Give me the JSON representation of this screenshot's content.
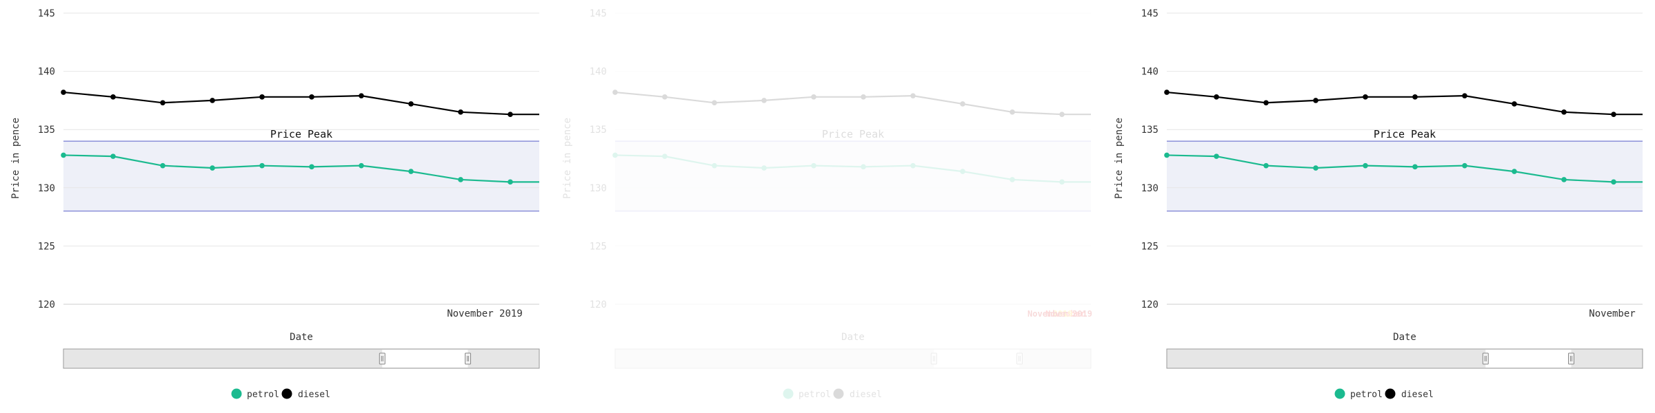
{
  "chart_data": [
    {
      "type": "line",
      "ylabel": "Price in pence",
      "xlabel": "Date",
      "x_tick_labels": [
        "November 2019"
      ],
      "ylim": [
        120,
        145
      ],
      "y_ticks": [
        120,
        125,
        130,
        135,
        140,
        145
      ],
      "grid": true,
      "plot_band": {
        "label": "Price Peak",
        "from": 128,
        "to": 134
      },
      "series": [
        {
          "name": "petrol",
          "color": "#1bba8f",
          "values": [
            132.8,
            132.7,
            131.9,
            131.7,
            131.9,
            131.8,
            131.9,
            131.4,
            130.7,
            130.5,
            130.5
          ]
        },
        {
          "name": "diesel",
          "color": "#000000",
          "values": [
            138.2,
            137.8,
            137.3,
            137.5,
            137.8,
            137.8,
            137.9,
            137.2,
            136.5,
            136.3,
            136.3
          ]
        }
      ],
      "navigator": {
        "handle_start": 0.67,
        "handle_end": 0.85
      },
      "legend": {
        "position": "bottom-center"
      }
    },
    {
      "type": "line",
      "faded": true,
      "ylabel": "Price in pence",
      "xlabel": "Date",
      "x_tick_labels": [
        "November",
        "2019",
        "November 2019"
      ],
      "ylim": [
        120,
        145
      ],
      "y_ticks": [
        120,
        125,
        130,
        135,
        140,
        145
      ],
      "grid": true,
      "plot_band": {
        "label": "Price Peak",
        "from": 128,
        "to": 134
      },
      "series": [
        {
          "name": "petrol",
          "color": "#1bba8f",
          "values": [
            132.8,
            132.7,
            131.9,
            131.7,
            131.9,
            131.8,
            131.9,
            131.4,
            130.7,
            130.5,
            130.5
          ]
        },
        {
          "name": "diesel",
          "color": "#000000",
          "values": [
            138.2,
            137.8,
            137.3,
            137.5,
            137.8,
            137.8,
            137.9,
            137.2,
            136.5,
            136.3,
            136.3
          ]
        }
      ],
      "navigator": {
        "handle_start": 0.67,
        "handle_end": 0.85
      },
      "legend": {
        "position": "bottom-center"
      }
    },
    {
      "type": "line",
      "ylabel": "Price in pence",
      "xlabel": "Date",
      "x_tick_labels": [
        "November"
      ],
      "ylim": [
        120,
        145
      ],
      "y_ticks": [
        120,
        125,
        130,
        135,
        140,
        145
      ],
      "grid": true,
      "plot_band": {
        "label": "Price Peak",
        "from": 128,
        "to": 134
      },
      "series": [
        {
          "name": "petrol",
          "color": "#1bba8f",
          "values": [
            132.8,
            132.7,
            131.9,
            131.7,
            131.9,
            131.8,
            131.9,
            131.4,
            130.7,
            130.5,
            130.5
          ]
        },
        {
          "name": "diesel",
          "color": "#000000",
          "values": [
            138.2,
            137.8,
            137.3,
            137.5,
            137.8,
            137.8,
            137.9,
            137.2,
            136.5,
            136.3,
            136.3
          ]
        }
      ],
      "navigator": {
        "handle_start": 0.67,
        "handle_end": 0.85
      },
      "legend": {
        "position": "bottom-center"
      }
    }
  ]
}
